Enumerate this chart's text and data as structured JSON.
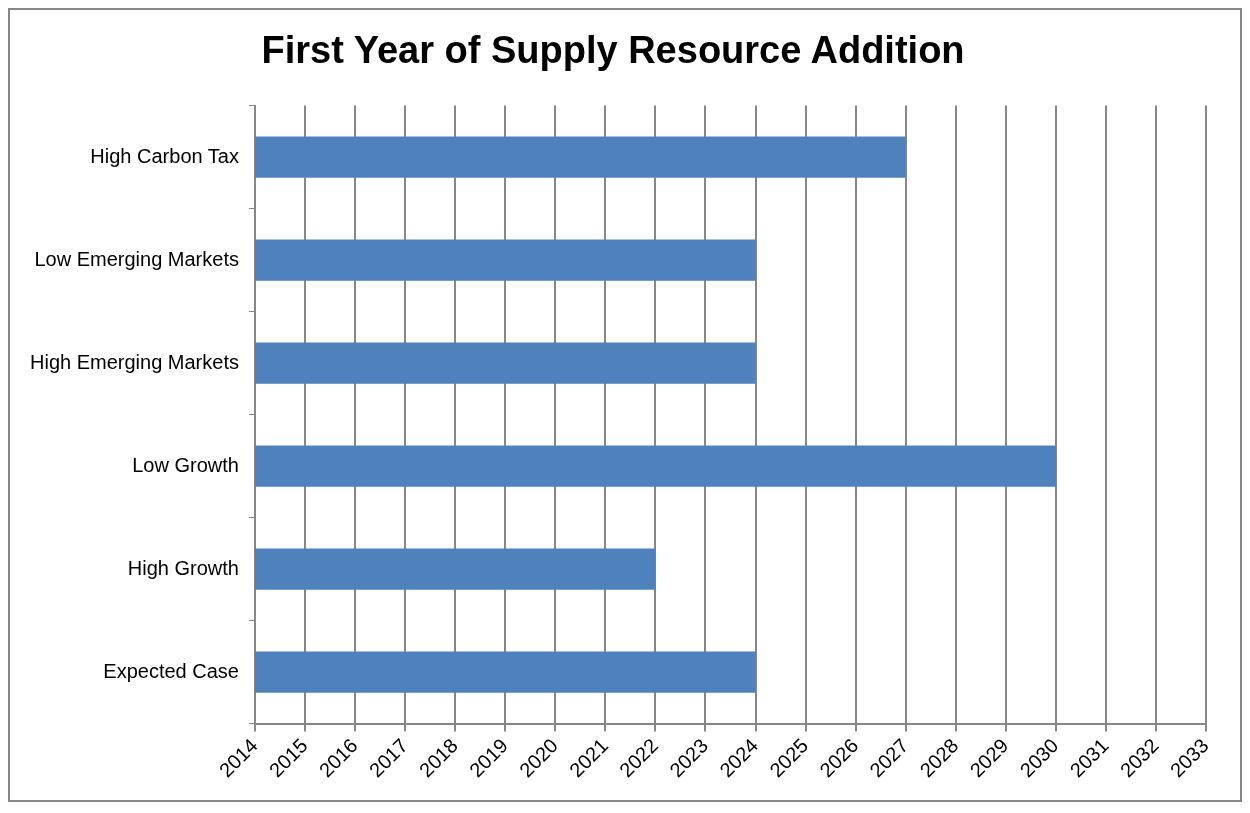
{
  "chart_data": {
    "type": "bar",
    "orientation": "horizontal",
    "title": "First Year of Supply Resource Addition",
    "categories": [
      "High Carbon Tax",
      "Low Emerging Markets",
      "High Emerging Markets",
      "Low Growth",
      "High Growth",
      "Expected Case"
    ],
    "values": [
      2027,
      2024,
      2024,
      2030,
      2022,
      2024
    ],
    "color": "#4f81bd",
    "xlim": [
      2014,
      2033
    ],
    "xticks": [
      2014,
      2015,
      2016,
      2017,
      2018,
      2019,
      2020,
      2021,
      2022,
      2023,
      2024,
      2025,
      2026,
      2027,
      2028,
      2029,
      2030,
      2031,
      2032,
      2033
    ],
    "grid": "x",
    "legend": false
  }
}
